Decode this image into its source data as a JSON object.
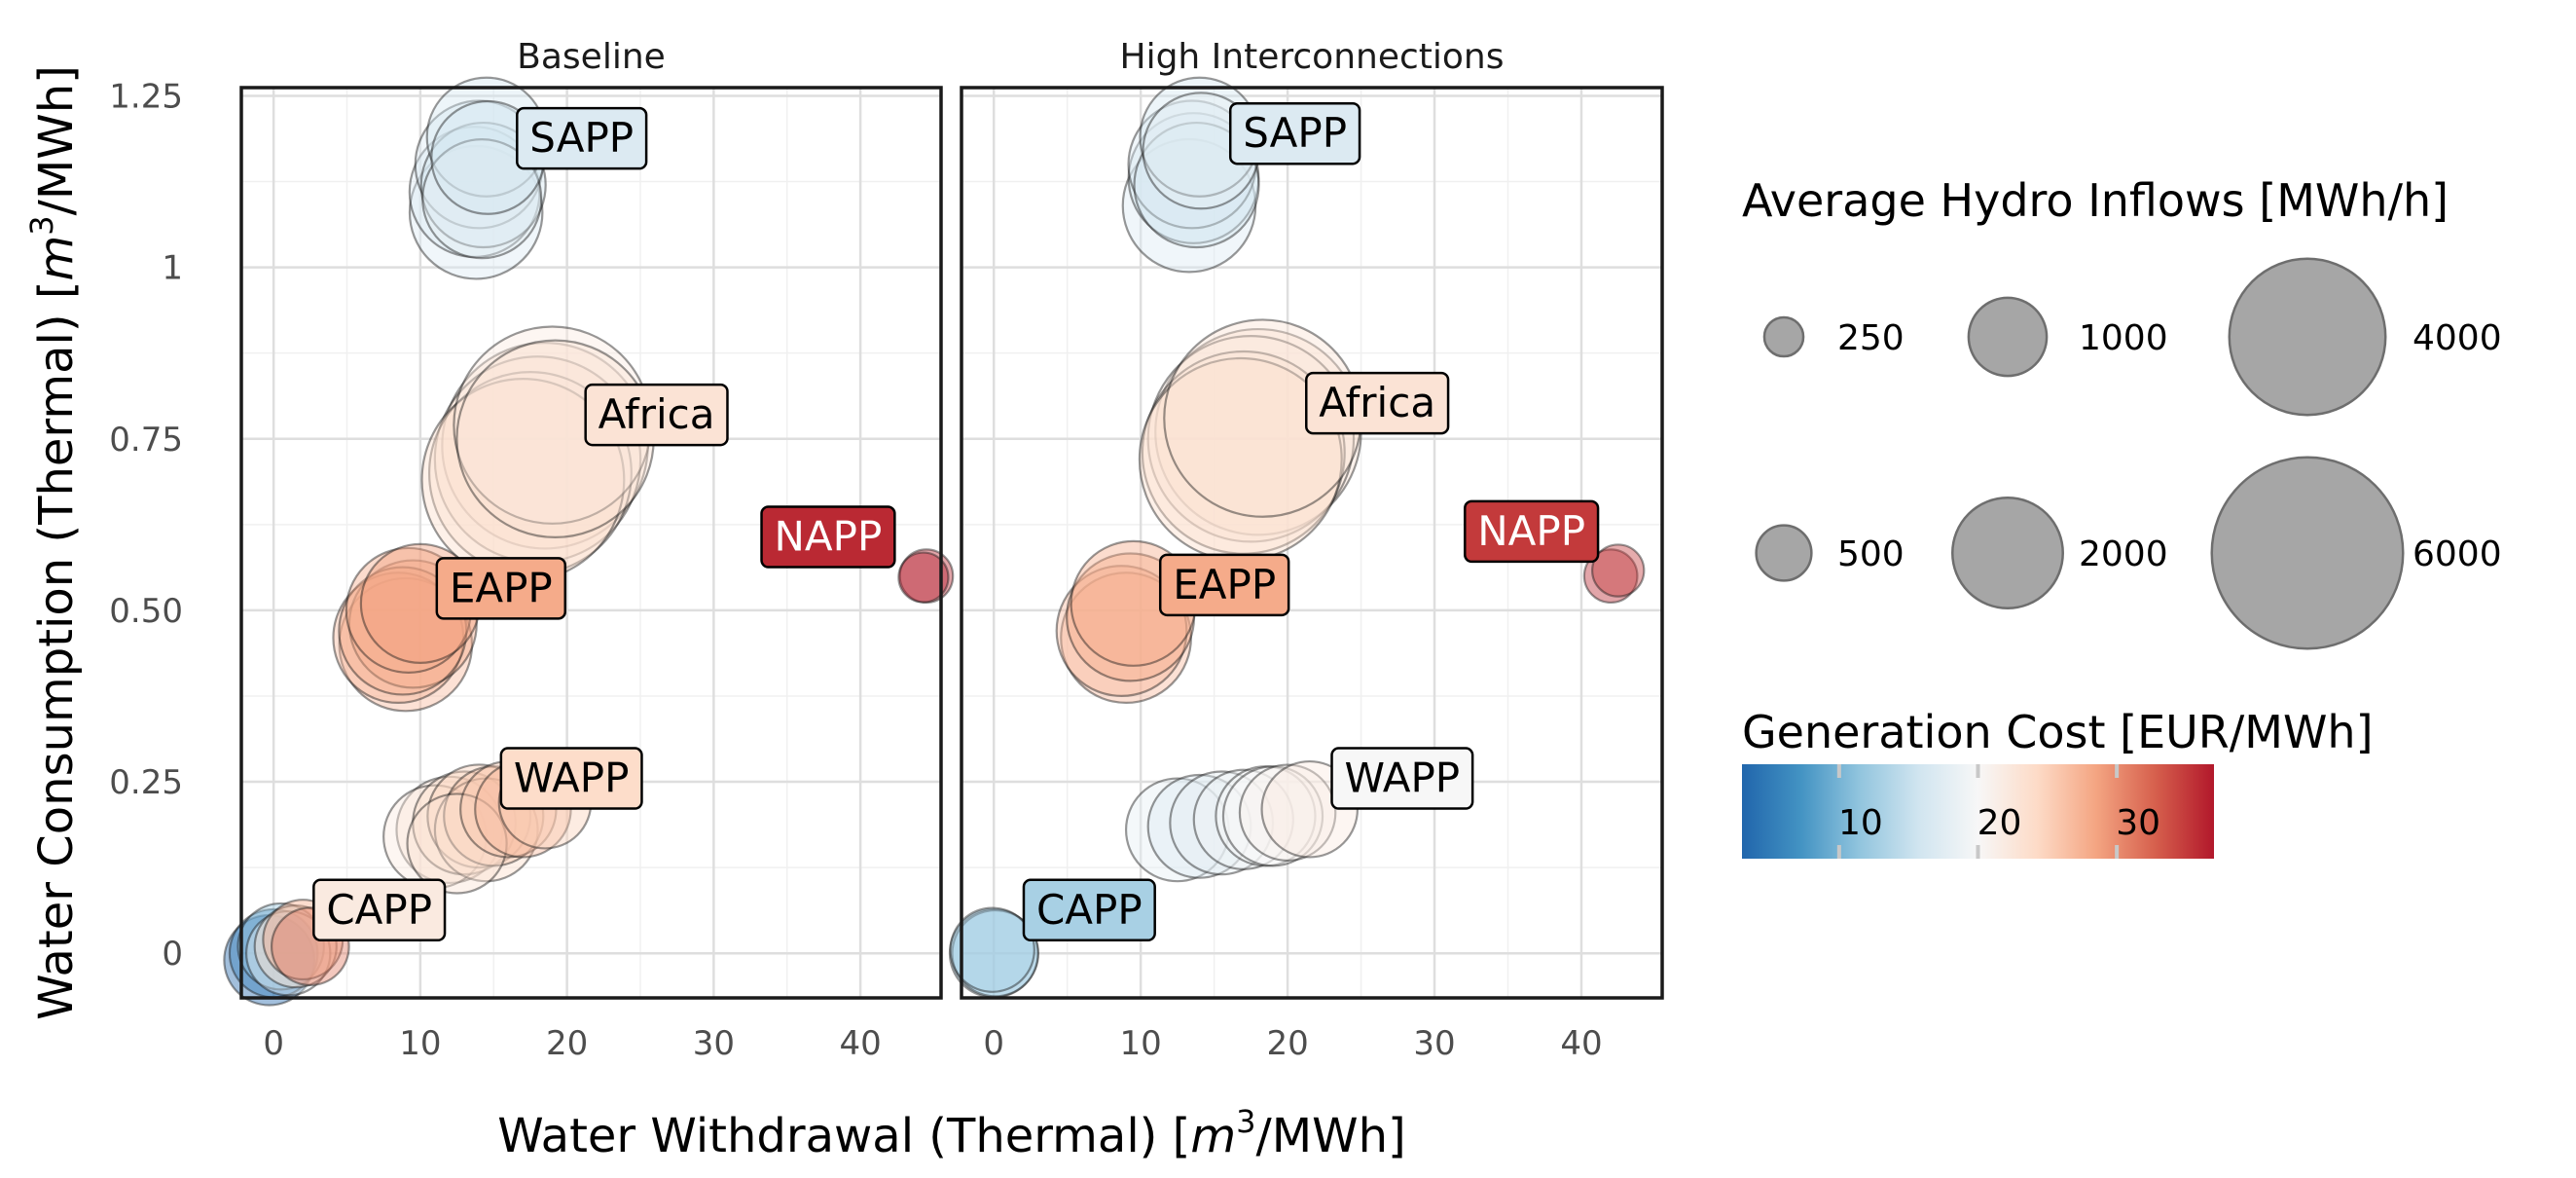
{
  "chart_data": {
    "type": "scatter",
    "xlabel_main": "Water Withdrawal (Thermal) [",
    "xlabel_unit": "m",
    "xlabel_sup": "3",
    "xlabel_tail": "/MWh]",
    "ylabel_main": "Water Consumption (Thermal) [",
    "ylabel_unit": "m",
    "ylabel_sup": "3",
    "ylabel_tail": "/MWh]",
    "xlim": [
      -2.2,
      45.5
    ],
    "ylim": [
      -0.065,
      1.262
    ],
    "x_ticks": [
      0,
      10,
      20,
      30,
      40
    ],
    "x_tick_labels": [
      "0",
      "10",
      "20",
      "30",
      "40"
    ],
    "y_ticks": [
      0,
      0.25,
      0.5,
      0.75,
      1,
      1.25
    ],
    "y_tick_labels": [
      "0",
      "0.25",
      "0.50",
      "0.75",
      "1",
      "1.25"
    ],
    "grid": true,
    "size_legend": {
      "title": "Average Hydro Inflows [MWh/h]",
      "entries": [
        {
          "value": 250,
          "label": "250"
        },
        {
          "value": 1000,
          "label": "1000"
        },
        {
          "value": 4000,
          "label": "4000"
        },
        {
          "value": 500,
          "label": "500"
        },
        {
          "value": 2000,
          "label": "2000"
        },
        {
          "value": 6000,
          "label": "6000"
        }
      ]
    },
    "color_legend": {
      "title": "Generation Cost [EUR/MWh]",
      "min": 3,
      "max": 37,
      "ticks": [
        10,
        20,
        30
      ],
      "tick_labels": [
        "10",
        "20",
        "30"
      ],
      "colors": [
        "#2166ac",
        "#4393c3",
        "#92c5de",
        "#d1e5f0",
        "#f7f7f7",
        "#fddbc7",
        "#f4a582",
        "#d6604d",
        "#b2182b"
      ]
    },
    "panels": [
      {
        "title": "Baseline",
        "groups": [
          {
            "name": "SAPP",
            "label_x": 21.0,
            "label_y": 1.188,
            "cost": 17,
            "points": [
              [
                14.5,
                1.19,
                2000,
                16
              ],
              [
                14.0,
                1.15,
                2300,
                17
              ],
              [
                14.3,
                1.12,
                2200,
                16
              ],
              [
                13.8,
                1.08,
                2500,
                17
              ],
              [
                14.2,
                1.1,
                2000,
                18
              ],
              [
                14.6,
                1.16,
                1800,
                16
              ],
              [
                13.7,
                1.11,
                2400,
                17
              ]
            ]
          },
          {
            "name": "Africa",
            "label_x": 26.1,
            "label_y": 0.785,
            "cost": 23,
            "points": [
              [
                18.5,
                0.74,
                6000,
                23
              ],
              [
                17.5,
                0.7,
                5800,
                23
              ],
              [
                19.0,
                0.77,
                5500,
                22
              ],
              [
                18.0,
                0.72,
                6000,
                23
              ],
              [
                17.0,
                0.69,
                5800,
                24
              ],
              [
                19.2,
                0.75,
                5500,
                23
              ]
            ]
          },
          {
            "name": "EAPP",
            "label_x": 15.5,
            "label_y": 0.532,
            "cost": 28,
            "points": [
              [
                9.0,
                0.45,
                2500,
                27
              ],
              [
                9.5,
                0.48,
                2300,
                28
              ],
              [
                8.5,
                0.46,
                2400,
                27
              ],
              [
                9.2,
                0.5,
                2200,
                28
              ],
              [
                10.0,
                0.51,
                2000,
                29
              ],
              [
                8.8,
                0.47,
                2300,
                28
              ]
            ]
          },
          {
            "name": "NAPP",
            "label_x": 37.8,
            "label_y": 0.607,
            "cost": 36,
            "points": [
              [
                44.5,
                0.55,
                400,
                36
              ],
              [
                44.3,
                0.548,
                350,
                37
              ]
            ]
          },
          {
            "name": "WAPP",
            "label_x": 20.3,
            "label_y": 0.255,
            "cost": 24,
            "points": [
              [
                11.0,
                0.17,
                1500,
                22
              ],
              [
                12.0,
                0.18,
                1600,
                23
              ],
              [
                13.0,
                0.19,
                1500,
                24
              ],
              [
                14.0,
                0.2,
                1500,
                25
              ],
              [
                15.0,
                0.2,
                1400,
                26
              ],
              [
                16.0,
                0.21,
                1300,
                26
              ],
              [
                17.0,
                0.21,
                1300,
                27
              ],
              [
                18.5,
                0.22,
                1200,
                25
              ],
              [
                12.5,
                0.16,
                1400,
                23
              ],
              [
                14.5,
                0.18,
                1500,
                24
              ]
            ]
          },
          {
            "name": "CAPP",
            "label_x": 7.2,
            "label_y": 0.063,
            "cost": 22,
            "points": [
              [
                0.0,
                0.0,
                1100,
                5
              ],
              [
                0.5,
                0.01,
                1050,
                12
              ],
              [
                1.0,
                0.0,
                1000,
                18
              ],
              [
                1.5,
                0.01,
                950,
                24
              ],
              [
                2.0,
                0.02,
                900,
                28
              ],
              [
                2.5,
                0.01,
                850,
                31
              ],
              [
                -0.3,
                -0.01,
                1150,
                3
              ]
            ]
          }
        ]
      },
      {
        "title": "High Interconnections",
        "groups": [
          {
            "name": "SAPP",
            "label_x": 20.5,
            "label_y": 1.195,
            "cost": 17,
            "points": [
              [
                14.0,
                1.19,
                2000,
                16
              ],
              [
                13.5,
                1.15,
                2300,
                17
              ],
              [
                13.8,
                1.12,
                2200,
                16
              ],
              [
                13.3,
                1.09,
                2500,
                17
              ],
              [
                14.1,
                1.17,
                1900,
                18
              ],
              [
                13.6,
                1.13,
                2400,
                16
              ]
            ]
          },
          {
            "name": "Africa",
            "label_x": 26.1,
            "label_y": 0.802,
            "cost": 23,
            "points": [
              [
                18.0,
                0.76,
                6000,
                23
              ],
              [
                17.0,
                0.73,
                5800,
                23
              ],
              [
                17.5,
                0.75,
                6000,
                22
              ],
              [
                18.3,
                0.78,
                5500,
                23
              ],
              [
                16.8,
                0.72,
                5800,
                24
              ]
            ]
          },
          {
            "name": "EAPP",
            "label_x": 15.7,
            "label_y": 0.537,
            "cost": 28,
            "points": [
              [
                9.0,
                0.46,
                2400,
                27
              ],
              [
                9.3,
                0.49,
                2300,
                28
              ],
              [
                8.7,
                0.47,
                2400,
                27
              ],
              [
                9.5,
                0.51,
                2200,
                28
              ]
            ]
          },
          {
            "name": "NAPP",
            "label_x": 36.6,
            "label_y": 0.615,
            "cost": 35,
            "points": [
              [
                42.0,
                0.55,
                400,
                36
              ],
              [
                42.5,
                0.558,
                380,
                35
              ]
            ]
          },
          {
            "name": "WAPP",
            "label_x": 27.8,
            "label_y": 0.255,
            "cost": 20,
            "points": [
              [
                12.5,
                0.18,
                1500,
                18
              ],
              [
                14.0,
                0.185,
                1500,
                17
              ],
              [
                15.5,
                0.19,
                1500,
                18
              ],
              [
                17.0,
                0.195,
                1400,
                19
              ],
              [
                18.5,
                0.2,
                1400,
                20
              ],
              [
                20.0,
                0.205,
                1300,
                21
              ],
              [
                21.5,
                0.21,
                1300,
                22
              ],
              [
                19.0,
                0.2,
                1400,
                20
              ]
            ]
          },
          {
            "name": "CAPP",
            "label_x": 6.5,
            "label_y": 0.063,
            "cost": 13,
            "points": [
              [
                0.0,
                0.0,
                1100,
                13
              ],
              [
                0.1,
                0.0,
                1050,
                12
              ],
              [
                -0.1,
                0.005,
                1000,
                13
              ]
            ]
          }
        ]
      }
    ]
  }
}
